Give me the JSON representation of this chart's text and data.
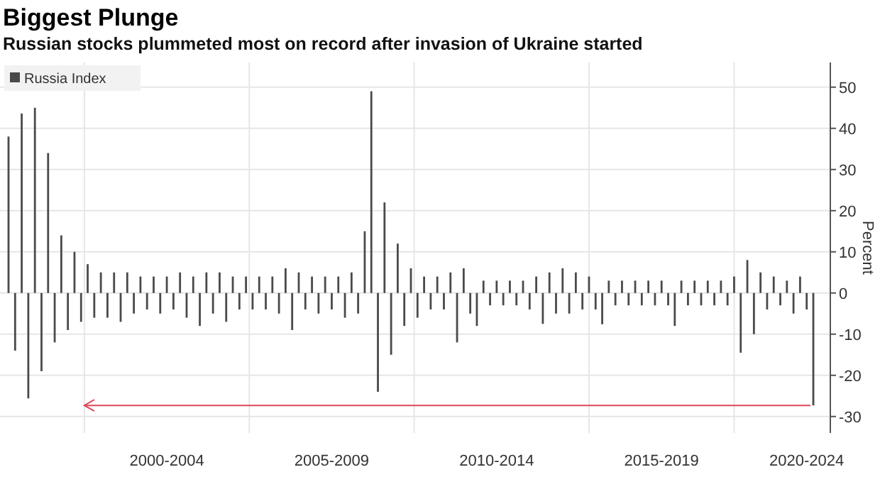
{
  "chart_data": {
    "type": "bar",
    "title": "Biggest Plunge",
    "subtitle": "Russian stocks plummeted most on record after invasion of Ukraine started",
    "ylabel": "Percent",
    "ylim": [
      -34,
      56
    ],
    "ref_lines": [
      {
        "axis": "y",
        "value": -27.3,
        "color": "#e0455a"
      }
    ],
    "yticks": [
      -30,
      -20,
      -10,
      0,
      10,
      20,
      30,
      40,
      50
    ],
    "categories": [
      null,
      null,
      null,
      null,
      null,
      null,
      null,
      null,
      null,
      null,
      null,
      null,
      null,
      null,
      null,
      null,
      null,
      null,
      null,
      null,
      null,
      null,
      null,
      null,
      "2000-2004",
      null,
      null,
      null,
      null,
      null,
      null,
      null,
      null,
      null,
      null,
      null,
      null,
      null,
      null,
      null,
      null,
      null,
      null,
      null,
      null,
      null,
      null,
      null,
      null,
      "2005-2009",
      null,
      null,
      null,
      null,
      null,
      null,
      null,
      null,
      null,
      null,
      null,
      null,
      null,
      null,
      null,
      null,
      null,
      null,
      null,
      null,
      null,
      null,
      null,
      null,
      "2010-2014",
      null,
      null,
      null,
      null,
      null,
      null,
      null,
      null,
      null,
      null,
      null,
      null,
      null,
      null,
      null,
      null,
      null,
      null,
      null,
      null,
      null,
      null,
      null,
      null,
      "2015-2019",
      null,
      null,
      null,
      null,
      null,
      null,
      null,
      null,
      null,
      null,
      null,
      null,
      null,
      null,
      null,
      null,
      null,
      null,
      null,
      null,
      null,
      "2020-2024",
      null
    ],
    "grid": true,
    "legend": "top left",
    "series": [
      {
        "name": "Russia Index",
        "color": "#4a4a4a",
        "values": [
          38,
          -14,
          43.6,
          -25.6,
          45,
          -19,
          34,
          -12,
          14,
          -9,
          10,
          -7,
          7,
          -6,
          5,
          -6,
          5,
          -7,
          5,
          -5,
          4,
          -4,
          4,
          -5,
          4,
          -4,
          5,
          -6,
          4,
          -8,
          5,
          -5,
          5,
          -7,
          4,
          -4,
          4,
          -4,
          4,
          -4,
          4,
          -5,
          6,
          -9,
          5,
          -4,
          4,
          -5,
          4,
          -4,
          4,
          -6,
          5,
          -5,
          15,
          49,
          -24,
          22,
          -15,
          12,
          -8,
          6,
          -6,
          4,
          -4,
          4,
          -4,
          5,
          -12,
          6,
          -5,
          -8,
          3,
          -3,
          3,
          -3,
          3,
          -3,
          3,
          -4,
          4,
          -7.5,
          5,
          -5,
          6,
          -5,
          5,
          -4,
          4,
          -4,
          -7.6,
          3,
          -3,
          3,
          -3,
          3,
          -3,
          3,
          -3,
          3,
          -3,
          -8,
          3,
          -3,
          3,
          -3,
          3,
          -3,
          3,
          -3,
          4,
          -14.5,
          8,
          -10,
          5,
          -4,
          4,
          -3,
          3,
          -5,
          4,
          -4,
          -27.3
        ]
      }
    ]
  }
}
